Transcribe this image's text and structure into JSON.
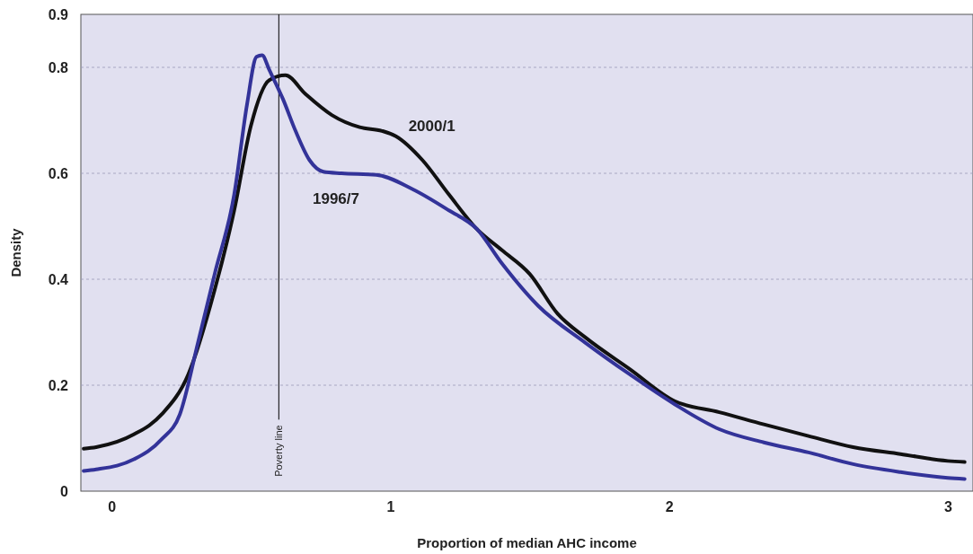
{
  "chart_data": {
    "type": "line",
    "xlabel": "Proportion of median AHC income",
    "ylabel": "Density",
    "xlim": [
      -0.11,
      3.09
    ],
    "xticks": [
      0,
      1,
      2,
      3
    ],
    "ylim": [
      0,
      0.9
    ],
    "yticks": [
      0,
      0.2,
      0.4,
      0.6,
      0.8,
      0.9
    ],
    "grid": "y",
    "legend": false,
    "line_style": "solid",
    "marker": "none",
    "ref_lines": [
      {
        "axis": "x",
        "value": 0.6,
        "label": "Poverty line",
        "color": "#000000"
      }
    ],
    "series": [
      {
        "name": "2000/1",
        "color": "#111111",
        "x": [
          -0.1,
          -0.055,
          0.08,
          0.18,
          0.275,
          0.37,
          0.44,
          0.5,
          0.566,
          0.624,
          0.695,
          0.79,
          0.89,
          0.97,
          1.02,
          1.115,
          1.21,
          1.31,
          1.4,
          1.5,
          1.6,
          1.7,
          1.86,
          2.02,
          2.18,
          2.34,
          2.5,
          2.66,
          2.83,
          3.0,
          3.06
        ],
        "values": [
          0.08,
          0.083,
          0.107,
          0.145,
          0.22,
          0.38,
          0.53,
          0.69,
          0.776,
          0.785,
          0.75,
          0.71,
          0.687,
          0.68,
          0.67,
          0.625,
          0.56,
          0.495,
          0.455,
          0.41,
          0.335,
          0.29,
          0.23,
          0.17,
          0.149,
          0.126,
          0.104,
          0.083,
          0.07,
          0.057,
          0.055
        ]
      },
      {
        "name": "1996/7",
        "color": "#333399",
        "x": [
          -0.1,
          -0.055,
          0.08,
          0.18,
          0.245,
          0.31,
          0.37,
          0.44,
          0.486,
          0.52,
          0.54,
          0.566,
          0.615,
          0.66,
          0.71,
          0.76,
          0.825,
          0.95,
          1.08,
          1.21,
          1.31,
          1.4,
          1.53,
          1.7,
          1.86,
          2.02,
          2.18,
          2.34,
          2.5,
          2.66,
          2.83,
          3.0,
          3.06
        ],
        "values": [
          0.038,
          0.041,
          0.06,
          0.098,
          0.145,
          0.28,
          0.41,
          0.56,
          0.73,
          0.82,
          0.823,
          0.795,
          0.74,
          0.68,
          0.625,
          0.603,
          0.6,
          0.597,
          0.57,
          0.53,
          0.495,
          0.43,
          0.35,
          0.28,
          0.22,
          0.164,
          0.117,
          0.092,
          0.073,
          0.051,
          0.036,
          0.025,
          0.023
        ]
      }
    ]
  }
}
